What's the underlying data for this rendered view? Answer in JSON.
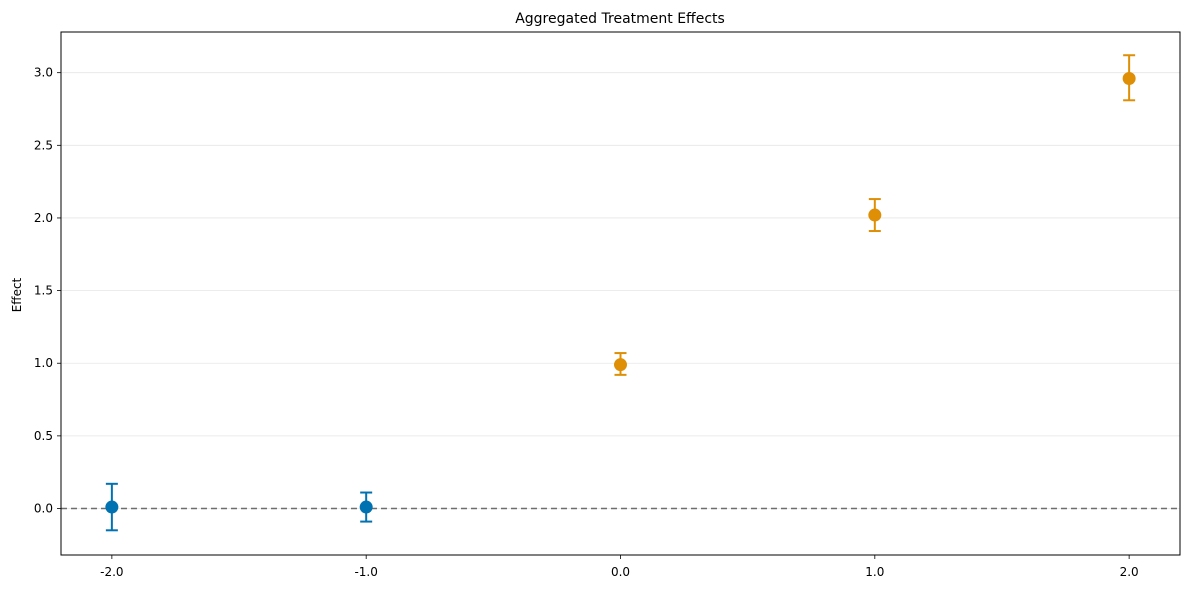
{
  "chart_data": {
    "type": "scatter",
    "title": "Aggregated Treatment Effects",
    "xlabel": "",
    "ylabel": "Effect",
    "xlim": [
      -2.2,
      2.2
    ],
    "ylim": [
      -0.32,
      3.28
    ],
    "x_ticks": [
      -2.0,
      -1.0,
      0.0,
      1.0,
      2.0
    ],
    "x_tick_labels": [
      "-2.0",
      "-1.0",
      "0.0",
      "1.0",
      "2.0"
    ],
    "y_ticks": [
      0.0,
      0.5,
      1.0,
      1.5,
      2.0,
      2.5,
      3.0
    ],
    "y_tick_labels": [
      "0.0",
      "0.5",
      "1.0",
      "1.5",
      "2.0",
      "2.5",
      "3.0"
    ],
    "grid": "horizontal",
    "reference_line": {
      "y": 0.0,
      "style": "dashed",
      "color": "#6e6e6e"
    },
    "series": [
      {
        "color": "#0072b2",
        "points": [
          {
            "x": -2.0,
            "y": 0.01,
            "lower": -0.15,
            "upper": 0.17
          },
          {
            "x": -1.0,
            "y": 0.01,
            "lower": -0.09,
            "upper": 0.11
          }
        ]
      },
      {
        "color": "#de8f05",
        "points": [
          {
            "x": 0.0,
            "y": 0.99,
            "lower": 0.92,
            "upper": 1.07
          },
          {
            "x": 1.0,
            "y": 2.02,
            "lower": 1.91,
            "upper": 2.13
          },
          {
            "x": 2.0,
            "y": 2.96,
            "lower": 2.81,
            "upper": 3.12
          }
        ]
      }
    ]
  }
}
